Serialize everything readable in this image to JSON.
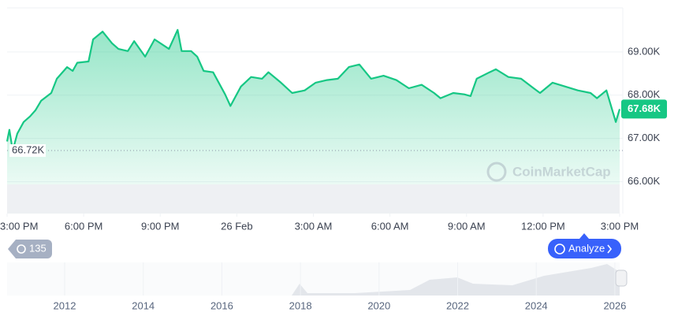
{
  "chart_data": {
    "type": "line",
    "x": [
      0,
      0.09,
      0.22,
      0.4,
      0.65,
      0.9,
      1.11,
      1.33,
      1.73,
      1.95,
      2.35,
      2.57,
      2.75,
      3.19,
      3.37,
      3.74,
      4.11,
      4.36,
      4.73,
      4.98,
      5.41,
      5.78,
      6.34,
      6.68,
      6.84,
      7.21,
      7.45,
      7.7,
      8.07,
      8.54,
      8.75,
      9.16,
      9.56,
      9.99,
      10.24,
      10.73,
      11.17,
      11.66,
      12.09,
      12.53,
      12.96,
      13.39,
      13.8,
      14.26,
      14.75,
      15.25,
      15.74,
      16.24,
      16.73,
      16.98,
      17.48,
      17.91,
      18.16,
      18.4,
      18.9,
      19.15,
      19.64,
      20.14,
      20.63,
      20.88,
      21.37,
      21.87,
      22.36,
      22.86,
      23.11,
      23.48,
      23.85,
      24
    ],
    "series": [
      {
        "color": "#16c784",
        "values": [
          66930,
          67200,
          66720,
          67110,
          67380,
          67510,
          67650,
          67870,
          68050,
          68380,
          68650,
          68560,
          68750,
          68780,
          69290,
          69470,
          69200,
          69070,
          69020,
          69250,
          68890,
          69290,
          69070,
          69510,
          69020,
          69020,
          68890,
          68560,
          68530,
          68020,
          67750,
          68200,
          68420,
          68380,
          68530,
          68290,
          68050,
          68110,
          68290,
          68350,
          68380,
          68650,
          68710,
          68380,
          68450,
          68350,
          68160,
          68240,
          68050,
          67930,
          68050,
          68020,
          67980,
          68380,
          68530,
          68600,
          68420,
          68380,
          68160,
          68050,
          68290,
          68200,
          68110,
          68050,
          67930,
          68110,
          67380,
          67680
        ]
      }
    ],
    "xlim": [
      0,
      24
    ],
    "xticks": [
      {
        "value": 0,
        "label": "3:00 PM"
      },
      {
        "value": 3,
        "label": "6:00 PM"
      },
      {
        "value": 6,
        "label": "9:00 PM"
      },
      {
        "value": 9,
        "label": "26 Feb"
      },
      {
        "value": 12,
        "label": "3:00 AM"
      },
      {
        "value": 15,
        "label": "6:00 AM"
      },
      {
        "value": 18,
        "label": "9:00 AM"
      },
      {
        "value": 21,
        "label": "12:00 PM"
      },
      {
        "value": 24,
        "label": "3:00 PM"
      }
    ],
    "ylim": [
      65300,
      70000
    ],
    "yticks": [
      {
        "value": 66000,
        "label": "66.00K"
      },
      {
        "value": 67000,
        "label": "67.00K"
      },
      {
        "value": 68000,
        "label": "68.00K"
      },
      {
        "value": 69000,
        "label": "69.00K"
      }
    ],
    "grid": true,
    "low_price": {
      "value": 66720,
      "label": "66.72K"
    },
    "last_price": {
      "value": 67680,
      "label": "67.68K"
    },
    "watermark": "CoinMarketCap",
    "badge": "135",
    "button": "Analyze",
    "navigator_labels": [
      "2012",
      "2014",
      "2016",
      "2018",
      "2020",
      "2022",
      "2024",
      "2026"
    ]
  }
}
